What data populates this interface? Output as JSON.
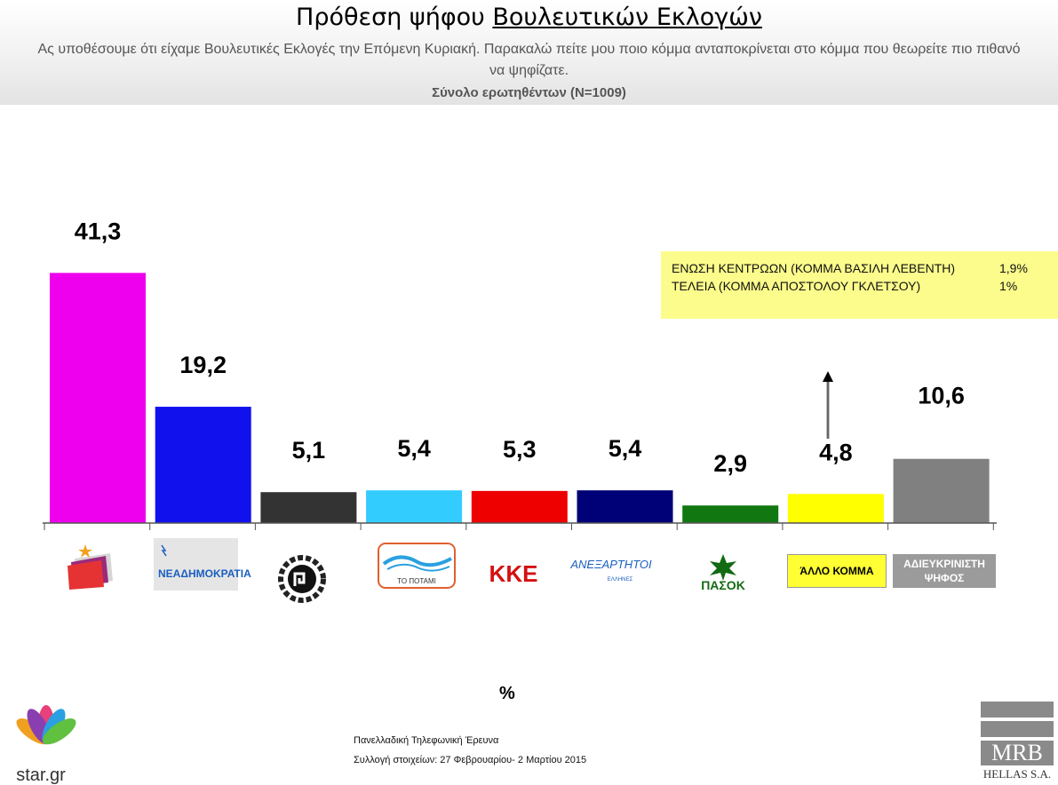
{
  "header": {
    "title_part1": "Πρόθεση ψήφου",
    "title_part2": "Βουλευτικών Εκλογών",
    "subtitle": "Ας υποθέσουμε ότι είχαμε Βουλευτικές Εκλογές την Επόμενη Κυριακή. Παρακαλώ πείτε μου ποιο κόμμα ανταποκρίνεται στο κόμμα που θεωρείτε πιο πιθανό να ψηφίζατε.",
    "base": "Σύνολο ερωτηθέντων (N=1009)"
  },
  "chart_data": {
    "type": "bar",
    "categories": [
      "ΣΥΡΙΖΑ",
      "ΝΕΑ ΔΗΜΟΚΡΑΤΙΑ",
      "ΧΡΥΣΗ ΑΥΓΗ",
      "ΤΟ ΠΟΤΑΜΙ",
      "ΚΚΕ",
      "ΑΝΕΞΑΡΤΗΤΟΙ ΕΛΛΗΝΕΣ",
      "ΠΑΣΟΚ",
      "ΆΛΛΟ ΚΟΜΜΑ",
      "ΑΔΙΕΥΚΡΙΝΙΣΤΗ ΨΗΦΟΣ"
    ],
    "values": [
      41.3,
      19.2,
      5.1,
      5.4,
      5.3,
      5.4,
      2.9,
      4.8,
      10.6
    ],
    "value_labels": [
      "41,3",
      "19,2",
      "5,1",
      "5,4",
      "5,3",
      "5,4",
      "2,9",
      "4,8",
      "10,6"
    ],
    "colors": [
      "#ee00ee",
      "#1111ee",
      "#333333",
      "#33ccff",
      "#ee0000",
      "#000077",
      "#117711",
      "#ffff00",
      "#808080"
    ],
    "ylim": [
      0,
      50
    ],
    "xlabel": "%"
  },
  "note": {
    "rows": [
      {
        "label": "ΕΝΩΣΗ ΚΕΝΤΡΩΩΝ (ΚΟΜΜΑ ΒΑΣΙΛΗ ΛΕΒΕΝΤΗ)",
        "value": "1,9%"
      },
      {
        "label": "ΤΕΛΕΙΑ (ΚΟΜΜΑ ΑΠΟΣΤΟΛΟΥ ΓΚΛΕΤΣΟΥ)",
        "value": "1%"
      }
    ]
  },
  "logos": {
    "nd": "ΝΕΑΔΗΜΟΚΡΑΤΙΑ",
    "potami": "ΤΟ ΠΟΤΑΜΙ",
    "kke": "ΚΚΕ",
    "anel": "ΑΝΕΞΑΡΤΗΤΟΙ",
    "anel_sub": "ΕΛΛΗΝΕΣ",
    "pasok": "ΠΑΣΟΚ",
    "allo": "ΆΛΛΟ ΚΟΜΜΑ",
    "adie_1": "ΑΔΙΕΥΚΡΙΝΙΣΤΗ",
    "adie_2": "ΨΗΦΟΣ"
  },
  "footer": {
    "line1": "Πανελλαδική  Τηλεφωνική Έρευνα",
    "line2": "Συλλογή στοιχείων: 27 Φεβρουαρίου- 2 Μαρτίου  2015",
    "brand_star": "star.gr",
    "brand_mrb": "MRB",
    "brand_mrb_sub": "HELLAS S.A."
  }
}
